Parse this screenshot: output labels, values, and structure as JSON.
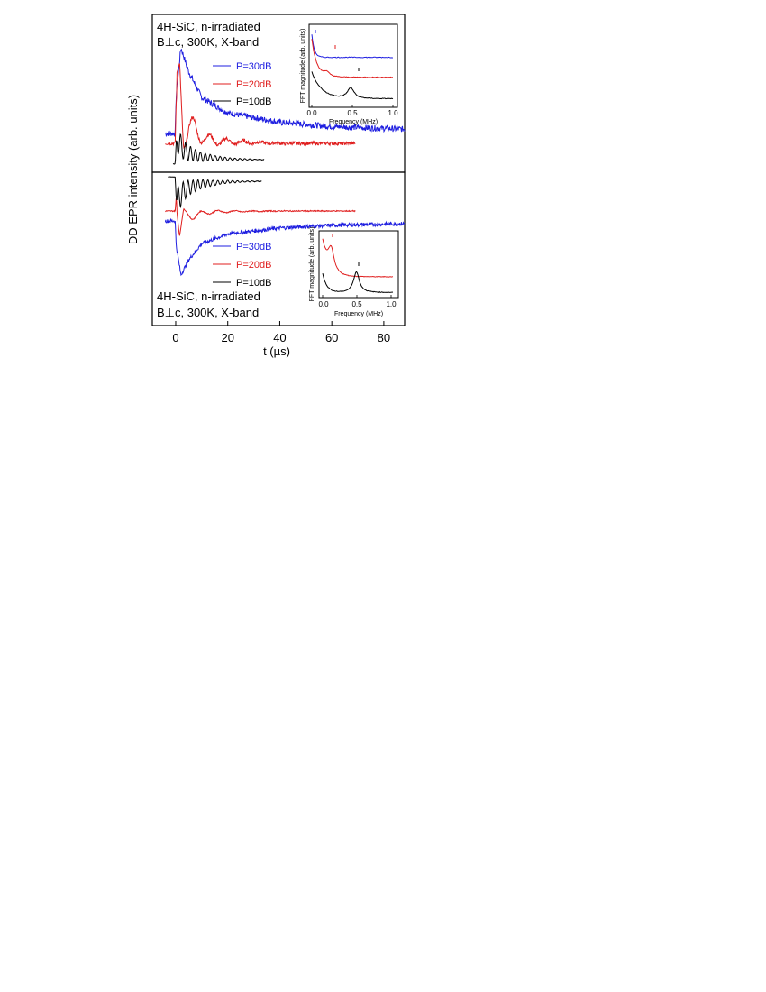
{
  "figure": {
    "ylabel": "DD EPR intensity (arb. units)",
    "xlabel": "t (µs)",
    "xticks": [
      "0",
      "20",
      "40",
      "60",
      "80"
    ]
  },
  "chart_data": [
    {
      "type": "line",
      "panel": "top",
      "annotation": [
        "4H-SiC, n-irradiated",
        "B⊥c, 300K, X-band"
      ],
      "x_unit": "µs",
      "xlim": [
        -9,
        88
      ],
      "series": [
        {
          "name": "P=30dB",
          "color": "#1f1fe0",
          "shape": "decay-up",
          "x": [
            -4,
            -0.2,
            0.2,
            2,
            5,
            10,
            20,
            40,
            60,
            88
          ],
          "y": [
            0.0,
            0.0,
            0.45,
            1.0,
            0.72,
            0.42,
            0.24,
            0.13,
            0.08,
            0.05
          ]
        },
        {
          "name": "P=20dB",
          "color": "#e01f1f",
          "shape": "oscillating-up",
          "x": [
            -4,
            -0.2,
            0.2,
            1.5,
            3,
            7,
            12,
            20,
            40,
            69
          ],
          "y": [
            0.0,
            0.0,
            0.5,
            0.93,
            0.12,
            0.18,
            0.04,
            0.02,
            0.0,
            0.0
          ]
        },
        {
          "name": "P=10dB",
          "color": "#000000",
          "shape": "oscillating-up",
          "x": [
            -1,
            -0.2,
            0.2,
            1.5,
            3,
            5,
            10,
            20,
            34
          ],
          "y": [
            -0.08,
            -0.08,
            0.35,
            0.3,
            0.18,
            0.12,
            0.05,
            0.01,
            0.0
          ]
        }
      ],
      "inset": {
        "xlabel": "Frequency (MHz)",
        "ylabel": "FFT magnitude (arb. units)",
        "xticks": [
          "0.0",
          "0.5",
          "1.0"
        ],
        "xlim": [
          0,
          1.0
        ],
        "peak_markers_MHz": [
          0.06,
          0.18,
          0.48
        ]
      }
    },
    {
      "type": "line",
      "panel": "bottom",
      "annotation": [
        "4H-SiC, n-irradiated",
        "B⊥c, 300K, X-band"
      ],
      "x_unit": "µs",
      "xlim": [
        -9,
        88
      ],
      "series": [
        {
          "name": "P=30dB",
          "color": "#1f1fe0",
          "shape": "decay-down",
          "x": [
            -4,
            -0.2,
            0.2,
            2,
            5,
            10,
            20,
            40,
            60,
            88
          ],
          "y": [
            0.0,
            0.0,
            -0.45,
            -1.0,
            -0.72,
            -0.42,
            -0.24,
            -0.13,
            -0.08,
            -0.05
          ]
        },
        {
          "name": "P=20dB",
          "color": "#e01f1f",
          "shape": "oscillating-down",
          "x": [
            -4,
            -0.2,
            0.2,
            1.5,
            3,
            7,
            12,
            20,
            40,
            69
          ],
          "y": [
            0.0,
            0.0,
            0.5,
            -0.93,
            -0.12,
            -0.18,
            -0.04,
            -0.02,
            0.0,
            0.0
          ]
        },
        {
          "name": "P=10dB",
          "color": "#000000",
          "shape": "oscillating-down",
          "x": [
            -3,
            -0.2,
            0.2,
            1.5,
            3,
            5,
            10,
            20,
            33
          ],
          "y": [
            0.08,
            0.08,
            -0.35,
            -0.3,
            -0.18,
            -0.12,
            -0.05,
            -0.01,
            0.0
          ]
        }
      ],
      "inset": {
        "xlabel": "Frequency (MHz)",
        "ylabel": "FFT magnitude (arb. units)",
        "xticks": [
          "0.0",
          "0.5",
          "1.0"
        ],
        "xlim": [
          0,
          1.0
        ],
        "peak_markers_MHz": [
          0.12,
          0.48
        ]
      }
    }
  ]
}
